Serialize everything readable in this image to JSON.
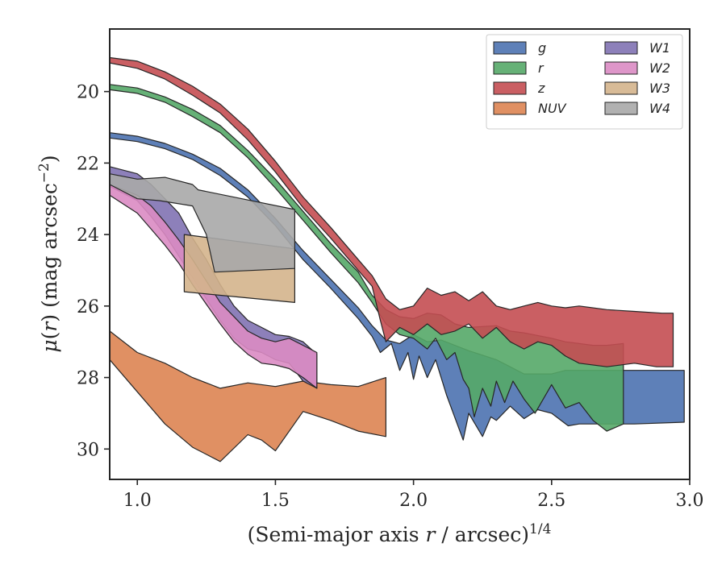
{
  "chart_data": {
    "type": "area",
    "xlabel": "(Semi-major axis r / arcsec)^{1/4}",
    "ylabel": "μ(r) (mag arcsec⁻²)",
    "xlim": [
      0.9,
      3.0
    ],
    "ylim": [
      30.85,
      18.25
    ],
    "y_inverted": true,
    "x_ticks": [
      1.0,
      1.5,
      2.0,
      2.5,
      3.0
    ],
    "x_tick_labels": [
      "1.0",
      "1.5",
      "2.0",
      "2.5",
      "3.0"
    ],
    "y_ticks": [
      20,
      22,
      24,
      26,
      28,
      30
    ],
    "y_tick_labels": [
      "20",
      "22",
      "24",
      "26",
      "28",
      "30"
    ],
    "grid": false,
    "legend": {
      "placement": "top-right",
      "columns": 2
    },
    "series": [
      {
        "name": "g",
        "color": "#4c72b0",
        "upper": [
          [
            0.9,
            21.15
          ],
          [
            1.0,
            21.25
          ],
          [
            1.1,
            21.45
          ],
          [
            1.2,
            21.75
          ],
          [
            1.3,
            22.15
          ],
          [
            1.4,
            22.75
          ],
          [
            1.5,
            23.55
          ],
          [
            1.6,
            24.45
          ],
          [
            1.7,
            25.25
          ],
          [
            1.8,
            26.05
          ],
          [
            1.85,
            26.55
          ],
          [
            1.9,
            26.95
          ],
          [
            1.95,
            27.05
          ],
          [
            2.0,
            26.8
          ],
          [
            2.05,
            27.0
          ],
          [
            2.1,
            26.95
          ],
          [
            2.2,
            27.25
          ],
          [
            2.3,
            27.5
          ],
          [
            2.4,
            27.9
          ],
          [
            2.5,
            27.9
          ],
          [
            2.55,
            27.8
          ],
          [
            2.6,
            27.8
          ],
          [
            2.8,
            27.8
          ],
          [
            2.98,
            27.8
          ]
        ],
        "lower": [
          [
            0.9,
            21.3
          ],
          [
            1.0,
            21.4
          ],
          [
            1.1,
            21.6
          ],
          [
            1.2,
            21.9
          ],
          [
            1.3,
            22.35
          ],
          [
            1.4,
            22.95
          ],
          [
            1.5,
            23.75
          ],
          [
            1.6,
            24.7
          ],
          [
            1.7,
            25.5
          ],
          [
            1.8,
            26.35
          ],
          [
            1.85,
            26.85
          ],
          [
            1.88,
            27.3
          ],
          [
            1.92,
            27.05
          ],
          [
            1.95,
            27.8
          ],
          [
            1.98,
            27.3
          ],
          [
            2.0,
            28.05
          ],
          [
            2.02,
            27.4
          ],
          [
            2.05,
            28.0
          ],
          [
            2.08,
            27.5
          ],
          [
            2.12,
            28.5
          ],
          [
            2.18,
            29.75
          ],
          [
            2.2,
            29.0
          ],
          [
            2.25,
            29.65
          ],
          [
            2.28,
            29.1
          ],
          [
            2.3,
            29.2
          ],
          [
            2.35,
            28.8
          ],
          [
            2.4,
            29.15
          ],
          [
            2.45,
            28.9
          ],
          [
            2.5,
            29.0
          ],
          [
            2.56,
            29.35
          ],
          [
            2.6,
            29.3
          ],
          [
            2.8,
            29.3
          ],
          [
            2.98,
            29.25
          ]
        ]
      },
      {
        "name": "r",
        "color": "#55a868",
        "upper": [
          [
            0.9,
            19.8
          ],
          [
            1.0,
            19.9
          ],
          [
            1.1,
            20.15
          ],
          [
            1.2,
            20.5
          ],
          [
            1.3,
            20.95
          ],
          [
            1.4,
            21.65
          ],
          [
            1.5,
            22.45
          ],
          [
            1.6,
            23.35
          ],
          [
            1.7,
            24.25
          ],
          [
            1.8,
            25.05
          ],
          [
            1.85,
            25.7
          ],
          [
            1.9,
            26.1
          ],
          [
            1.95,
            26.3
          ],
          [
            2.0,
            26.35
          ],
          [
            2.05,
            26.2
          ],
          [
            2.1,
            26.25
          ],
          [
            2.15,
            26.5
          ],
          [
            2.2,
            26.6
          ],
          [
            2.3,
            26.55
          ],
          [
            2.35,
            26.7
          ],
          [
            2.4,
            26.75
          ],
          [
            2.5,
            26.9
          ],
          [
            2.55,
            27.0
          ],
          [
            2.6,
            27.05
          ],
          [
            2.65,
            27.1
          ],
          [
            2.7,
            27.1
          ],
          [
            2.76,
            27.05
          ]
        ],
        "lower": [
          [
            0.9,
            19.95
          ],
          [
            1.0,
            20.05
          ],
          [
            1.1,
            20.3
          ],
          [
            1.2,
            20.7
          ],
          [
            1.3,
            21.15
          ],
          [
            1.4,
            21.85
          ],
          [
            1.5,
            22.7
          ],
          [
            1.6,
            23.6
          ],
          [
            1.7,
            24.5
          ],
          [
            1.8,
            25.35
          ],
          [
            1.85,
            25.9
          ],
          [
            1.9,
            26.5
          ],
          [
            1.95,
            26.8
          ],
          [
            2.0,
            26.9
          ],
          [
            2.05,
            27.2
          ],
          [
            2.08,
            26.9
          ],
          [
            2.12,
            27.5
          ],
          [
            2.15,
            27.3
          ],
          [
            2.18,
            28.05
          ],
          [
            2.2,
            28.3
          ],
          [
            2.22,
            29.1
          ],
          [
            2.25,
            28.3
          ],
          [
            2.28,
            28.8
          ],
          [
            2.3,
            28.1
          ],
          [
            2.33,
            28.7
          ],
          [
            2.36,
            28.1
          ],
          [
            2.4,
            28.6
          ],
          [
            2.44,
            29.0
          ],
          [
            2.5,
            28.2
          ],
          [
            2.55,
            28.85
          ],
          [
            2.6,
            28.7
          ],
          [
            2.65,
            29.2
          ],
          [
            2.7,
            29.5
          ],
          [
            2.76,
            29.3
          ]
        ]
      },
      {
        "name": "z",
        "color": "#c44e52",
        "upper": [
          [
            0.9,
            19.05
          ],
          [
            1.0,
            19.15
          ],
          [
            1.1,
            19.45
          ],
          [
            1.2,
            19.85
          ],
          [
            1.3,
            20.35
          ],
          [
            1.4,
            21.05
          ],
          [
            1.5,
            21.95
          ],
          [
            1.6,
            22.95
          ],
          [
            1.7,
            23.8
          ],
          [
            1.8,
            24.7
          ],
          [
            1.85,
            25.15
          ],
          [
            1.9,
            25.8
          ],
          [
            1.95,
            26.1
          ],
          [
            2.0,
            26.0
          ],
          [
            2.05,
            25.5
          ],
          [
            2.1,
            25.7
          ],
          [
            2.15,
            25.6
          ],
          [
            2.2,
            25.85
          ],
          [
            2.25,
            25.6
          ],
          [
            2.3,
            26.0
          ],
          [
            2.35,
            26.1
          ],
          [
            2.4,
            26.0
          ],
          [
            2.45,
            25.9
          ],
          [
            2.5,
            26.0
          ],
          [
            2.55,
            26.05
          ],
          [
            2.6,
            26.0
          ],
          [
            2.7,
            26.1
          ],
          [
            2.8,
            26.15
          ],
          [
            2.9,
            26.2
          ],
          [
            2.94,
            26.2
          ]
        ],
        "lower": [
          [
            0.9,
            19.2
          ],
          [
            1.0,
            19.35
          ],
          [
            1.1,
            19.65
          ],
          [
            1.2,
            20.1
          ],
          [
            1.3,
            20.6
          ],
          [
            1.4,
            21.35
          ],
          [
            1.5,
            22.25
          ],
          [
            1.6,
            23.25
          ],
          [
            1.7,
            24.1
          ],
          [
            1.8,
            25.0
          ],
          [
            1.85,
            25.45
          ],
          [
            1.88,
            26.4
          ],
          [
            1.9,
            27.0
          ],
          [
            1.95,
            26.6
          ],
          [
            2.0,
            26.8
          ],
          [
            2.05,
            26.5
          ],
          [
            2.1,
            26.8
          ],
          [
            2.15,
            26.7
          ],
          [
            2.2,
            26.5
          ],
          [
            2.25,
            26.9
          ],
          [
            2.3,
            26.6
          ],
          [
            2.35,
            27.0
          ],
          [
            2.4,
            27.2
          ],
          [
            2.45,
            27.0
          ],
          [
            2.5,
            27.1
          ],
          [
            2.55,
            27.4
          ],
          [
            2.6,
            27.6
          ],
          [
            2.7,
            27.7
          ],
          [
            2.8,
            27.6
          ],
          [
            2.88,
            27.7
          ],
          [
            2.94,
            27.7
          ]
        ]
      },
      {
        "name": "NUV",
        "color": "#dd8452",
        "upper": [
          [
            0.9,
            26.7
          ],
          [
            1.0,
            27.3
          ],
          [
            1.1,
            27.6
          ],
          [
            1.2,
            28.0
          ],
          [
            1.3,
            28.3
          ],
          [
            1.4,
            28.15
          ],
          [
            1.5,
            28.25
          ],
          [
            1.6,
            28.1
          ],
          [
            1.7,
            28.2
          ],
          [
            1.8,
            28.25
          ],
          [
            1.9,
            28.0
          ]
        ],
        "lower": [
          [
            0.9,
            27.5
          ],
          [
            1.0,
            28.4
          ],
          [
            1.1,
            29.3
          ],
          [
            1.2,
            29.95
          ],
          [
            1.3,
            30.35
          ],
          [
            1.4,
            29.6
          ],
          [
            1.45,
            29.75
          ],
          [
            1.5,
            30.05
          ],
          [
            1.6,
            28.95
          ],
          [
            1.7,
            29.2
          ],
          [
            1.8,
            29.5
          ],
          [
            1.9,
            29.65
          ]
        ]
      },
      {
        "name": "W1",
        "color": "#8172b3",
        "upper": [
          [
            0.9,
            22.1
          ],
          [
            1.0,
            22.3
          ],
          [
            1.05,
            22.6
          ],
          [
            1.1,
            23.0
          ],
          [
            1.15,
            23.4
          ],
          [
            1.2,
            24.1
          ],
          [
            1.25,
            24.7
          ],
          [
            1.3,
            25.4
          ],
          [
            1.35,
            26.0
          ],
          [
            1.4,
            26.4
          ],
          [
            1.45,
            26.6
          ],
          [
            1.5,
            26.8
          ],
          [
            1.55,
            26.85
          ],
          [
            1.6,
            27.0
          ],
          [
            1.65,
            27.35
          ]
        ],
        "lower": [
          [
            0.9,
            22.65
          ],
          [
            1.0,
            23.05
          ],
          [
            1.05,
            23.5
          ],
          [
            1.1,
            24.0
          ],
          [
            1.15,
            24.6
          ],
          [
            1.2,
            25.2
          ],
          [
            1.25,
            25.8
          ],
          [
            1.3,
            26.4
          ],
          [
            1.35,
            26.9
          ],
          [
            1.4,
            27.2
          ],
          [
            1.45,
            27.3
          ],
          [
            1.5,
            27.5
          ],
          [
            1.55,
            27.6
          ],
          [
            1.6,
            28.1
          ],
          [
            1.65,
            28.3
          ]
        ]
      },
      {
        "name": "W2",
        "color": "#da8bc3",
        "upper": [
          [
            0.9,
            22.6
          ],
          [
            1.0,
            22.9
          ],
          [
            1.05,
            23.2
          ],
          [
            1.1,
            23.65
          ],
          [
            1.15,
            24.15
          ],
          [
            1.2,
            24.7
          ],
          [
            1.25,
            25.3
          ],
          [
            1.3,
            25.9
          ],
          [
            1.35,
            26.3
          ],
          [
            1.4,
            26.7
          ],
          [
            1.45,
            26.9
          ],
          [
            1.5,
            27.0
          ],
          [
            1.55,
            26.9
          ],
          [
            1.6,
            27.1
          ],
          [
            1.65,
            27.3
          ]
        ],
        "lower": [
          [
            0.9,
            22.9
          ],
          [
            1.0,
            23.4
          ],
          [
            1.05,
            23.85
          ],
          [
            1.1,
            24.3
          ],
          [
            1.15,
            24.8
          ],
          [
            1.2,
            25.4
          ],
          [
            1.25,
            25.95
          ],
          [
            1.3,
            26.5
          ],
          [
            1.35,
            27.0
          ],
          [
            1.4,
            27.35
          ],
          [
            1.45,
            27.6
          ],
          [
            1.5,
            27.65
          ],
          [
            1.55,
            27.75
          ],
          [
            1.6,
            28.0
          ],
          [
            1.65,
            28.3
          ]
        ]
      },
      {
        "name": "W3",
        "color": "#d4b48c",
        "upper": [
          [
            1.17,
            24.0
          ],
          [
            1.57,
            24.4
          ]
        ],
        "lower": [
          [
            1.17,
            25.6
          ],
          [
            1.57,
            25.9
          ]
        ]
      },
      {
        "name": "W4",
        "color": "#a9a9a9",
        "upper": [
          [
            0.9,
            22.3
          ],
          [
            1.0,
            22.45
          ],
          [
            1.1,
            22.4
          ],
          [
            1.2,
            22.6
          ],
          [
            1.22,
            22.75
          ],
          [
            1.57,
            23.3
          ]
        ],
        "lower": [
          [
            0.9,
            22.6
          ],
          [
            1.0,
            23.0
          ],
          [
            1.08,
            23.05
          ],
          [
            1.2,
            23.2
          ],
          [
            1.25,
            24.0
          ],
          [
            1.28,
            25.05
          ],
          [
            1.57,
            24.95
          ]
        ]
      }
    ]
  }
}
